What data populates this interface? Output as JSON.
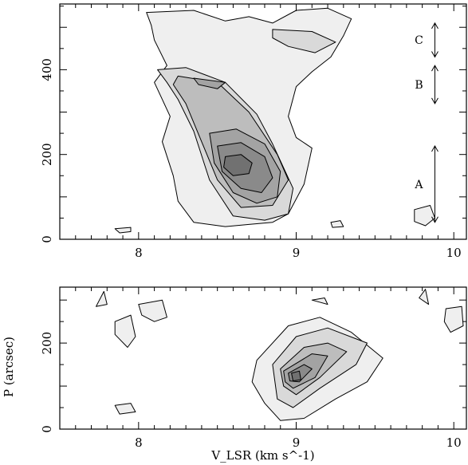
{
  "chart_data": [
    {
      "type": "contour",
      "panel": "top",
      "xlim": [
        7.5,
        10.08
      ],
      "ylim": [
        0,
        555
      ],
      "x_ticks": [
        8,
        9,
        10
      ],
      "y_ticks": [
        0,
        200,
        400
      ],
      "x_tick_labels": [
        "8",
        "9",
        "10"
      ],
      "y_tick_labels": [
        "0",
        "200",
        "400"
      ],
      "xlabel": "",
      "ylabel": "",
      "fill_levels": [
        "#efefef",
        "#d9d9d9",
        "#bdbdbd",
        "#a3a3a3",
        "#8a8a8a",
        "#717171"
      ],
      "annotations": [
        {
          "label": "C",
          "x": 9.88,
          "y_from": 430,
          "y_to": 510
        },
        {
          "label": "B",
          "x": 9.88,
          "y_from": 320,
          "y_to": 410
        },
        {
          "label": "A",
          "x": 9.88,
          "y_from": 40,
          "y_to": 220
        }
      ],
      "contours": [
        {
          "level": 1,
          "points": [
            [
              8.05,
              535
            ],
            [
              8.35,
              540
            ],
            [
              8.55,
              515
            ],
            [
              8.7,
              525
            ],
            [
              8.85,
              510
            ],
            [
              9.0,
              540
            ],
            [
              9.2,
              545
            ],
            [
              9.35,
              520
            ],
            [
              9.3,
              480
            ],
            [
              9.22,
              430
            ],
            [
              9.1,
              395
            ],
            [
              9.0,
              360
            ],
            [
              8.95,
              290
            ],
            [
              9.0,
              240
            ],
            [
              9.1,
              215
            ],
            [
              9.05,
              130
            ],
            [
              8.95,
              60
            ],
            [
              8.85,
              40
            ],
            [
              8.7,
              35
            ],
            [
              8.55,
              30
            ],
            [
              8.35,
              40
            ],
            [
              8.25,
              90
            ],
            [
              8.22,
              150
            ],
            [
              8.15,
              230
            ],
            [
              8.2,
              290
            ],
            [
              8.15,
              330
            ],
            [
              8.1,
              370
            ],
            [
              8.18,
              410
            ],
            [
              8.1,
              470
            ],
            [
              8.08,
              505
            ]
          ]
        },
        {
          "level": 1,
          "points": [
            [
              7.85,
              25
            ],
            [
              7.95,
              28
            ],
            [
              7.95,
              18
            ],
            [
              7.88,
              15
            ]
          ]
        },
        {
          "level": 1,
          "points": [
            [
              9.75,
              70
            ],
            [
              9.85,
              80
            ],
            [
              9.88,
              50
            ],
            [
              9.82,
              32
            ],
            [
              9.75,
              42
            ]
          ]
        },
        {
          "level": 1,
          "points": [
            [
              9.22,
              40
            ],
            [
              9.28,
              44
            ],
            [
              9.3,
              30
            ],
            [
              9.23,
              28
            ]
          ]
        },
        {
          "level": 2,
          "points": [
            [
              8.12,
              400
            ],
            [
              8.3,
              405
            ],
            [
              8.55,
              370
            ],
            [
              8.75,
              295
            ],
            [
              8.85,
              225
            ],
            [
              8.98,
              120
            ],
            [
              8.95,
              60
            ],
            [
              8.8,
              45
            ],
            [
              8.6,
              55
            ],
            [
              8.45,
              140
            ],
            [
              8.35,
              255
            ],
            [
              8.25,
              330
            ],
            [
              8.18,
              370
            ]
          ]
        },
        {
          "level": 2,
          "points": [
            [
              8.85,
              495
            ],
            [
              9.1,
              490
            ],
            [
              9.25,
              465
            ],
            [
              9.12,
              440
            ],
            [
              8.95,
              455
            ],
            [
              8.85,
              475
            ]
          ]
        },
        {
          "level": 3,
          "points": [
            [
              8.25,
              385
            ],
            [
              8.5,
              370
            ],
            [
              8.7,
              300
            ],
            [
              8.88,
              200
            ],
            [
              8.95,
              140
            ],
            [
              8.85,
              80
            ],
            [
              8.65,
              75
            ],
            [
              8.5,
              140
            ],
            [
              8.4,
              230
            ],
            [
              8.3,
              320
            ],
            [
              8.22,
              365
            ]
          ]
        },
        {
          "level": 4,
          "points": [
            [
              8.35,
              380
            ],
            [
              8.55,
              370
            ],
            [
              8.5,
              355
            ],
            [
              8.38,
              365
            ]
          ]
        },
        {
          "level": 4,
          "points": [
            [
              8.45,
              250
            ],
            [
              8.62,
              260
            ],
            [
              8.8,
              225
            ],
            [
              8.9,
              160
            ],
            [
              8.88,
              100
            ],
            [
              8.75,
              85
            ],
            [
              8.6,
              110
            ],
            [
              8.48,
              180
            ]
          ]
        },
        {
          "level": 5,
          "points": [
            [
              8.5,
              220
            ],
            [
              8.65,
              228
            ],
            [
              8.8,
              195
            ],
            [
              8.85,
              145
            ],
            [
              8.78,
              110
            ],
            [
              8.65,
              120
            ],
            [
              8.53,
              160
            ]
          ]
        },
        {
          "level": 6,
          "points": [
            [
              8.55,
              195
            ],
            [
              8.65,
              200
            ],
            [
              8.72,
              180
            ],
            [
              8.7,
              155
            ],
            [
              8.6,
              150
            ],
            [
              8.54,
              170
            ]
          ]
        }
      ]
    },
    {
      "type": "contour",
      "panel": "bottom",
      "xlim": [
        7.5,
        10.08
      ],
      "ylim": [
        0,
        330
      ],
      "x_ticks": [
        8,
        9,
        10
      ],
      "y_ticks": [
        0,
        200
      ],
      "x_tick_labels": [
        "8",
        "9",
        "10"
      ],
      "y_tick_labels": [
        "0",
        "200"
      ],
      "xlabel": "V_LSR (km s^-1)",
      "ylabel": "P (arcsec)",
      "fill_levels": [
        "#efefef",
        "#d9d9d9",
        "#bdbdbd",
        "#a3a3a3",
        "#8a8a8a",
        "#717171"
      ],
      "contours": [
        {
          "level": 1,
          "points": [
            [
              8.75,
              160
            ],
            [
              8.95,
              240
            ],
            [
              9.15,
              260
            ],
            [
              9.35,
              225
            ],
            [
              9.55,
              165
            ],
            [
              9.45,
              110
            ],
            [
              9.25,
              70
            ],
            [
              9.05,
              25
            ],
            [
              8.9,
              20
            ],
            [
              8.8,
              60
            ],
            [
              8.72,
              110
            ]
          ]
        },
        {
          "level": 1,
          "points": [
            [
              8.0,
              290
            ],
            [
              8.15,
              300
            ],
            [
              8.18,
              260
            ],
            [
              8.1,
              250
            ],
            [
              8.02,
              265
            ]
          ]
        },
        {
          "level": 1,
          "points": [
            [
              7.73,
              285
            ],
            [
              7.78,
              320
            ],
            [
              7.8,
              290
            ]
          ]
        },
        {
          "level": 1,
          "points": [
            [
              7.85,
              250
            ],
            [
              7.95,
              265
            ],
            [
              7.98,
              215
            ],
            [
              7.93,
              190
            ],
            [
              7.85,
              220
            ]
          ]
        },
        {
          "level": 1,
          "points": [
            [
              7.85,
              55
            ],
            [
              7.95,
              60
            ],
            [
              7.98,
              40
            ],
            [
              7.88,
              35
            ]
          ]
        },
        {
          "level": 1,
          "points": [
            [
              9.1,
              300
            ],
            [
              9.18,
              305
            ],
            [
              9.2,
              290
            ]
          ]
        },
        {
          "level": 1,
          "points": [
            [
              9.78,
              305
            ],
            [
              9.82,
              325
            ],
            [
              9.84,
              290
            ]
          ]
        },
        {
          "level": 1,
          "points": [
            [
              9.95,
              280
            ],
            [
              10.05,
              285
            ],
            [
              10.06,
              240
            ],
            [
              9.98,
              225
            ],
            [
              9.94,
              250
            ]
          ]
        },
        {
          "level": 2,
          "points": [
            [
              8.85,
              150
            ],
            [
              9.0,
              215
            ],
            [
              9.2,
              235
            ],
            [
              9.45,
              200
            ],
            [
              9.38,
              150
            ],
            [
              9.15,
              95
            ],
            [
              8.98,
              50
            ],
            [
              8.88,
              70
            ]
          ]
        },
        {
          "level": 3,
          "points": [
            [
              8.9,
              140
            ],
            [
              9.05,
              190
            ],
            [
              9.2,
              200
            ],
            [
              9.32,
              180
            ],
            [
              9.15,
              120
            ],
            [
              9.0,
              80
            ],
            [
              8.92,
              100
            ]
          ]
        },
        {
          "level": 4,
          "points": [
            [
              8.92,
              135
            ],
            [
              9.1,
              175
            ],
            [
              9.2,
              170
            ],
            [
              9.12,
              120
            ],
            [
              8.98,
              95
            ],
            [
              8.93,
              110
            ]
          ]
        },
        {
          "level": 5,
          "points": [
            [
              8.95,
              130
            ],
            [
              9.05,
              150
            ],
            [
              9.1,
              140
            ],
            [
              9.02,
              110
            ],
            [
              8.96,
              112
            ]
          ]
        },
        {
          "level": 6,
          "points": [
            [
              8.97,
              130
            ],
            [
              9.02,
              135
            ],
            [
              9.03,
              115
            ],
            [
              8.98,
              112
            ]
          ]
        }
      ]
    }
  ]
}
